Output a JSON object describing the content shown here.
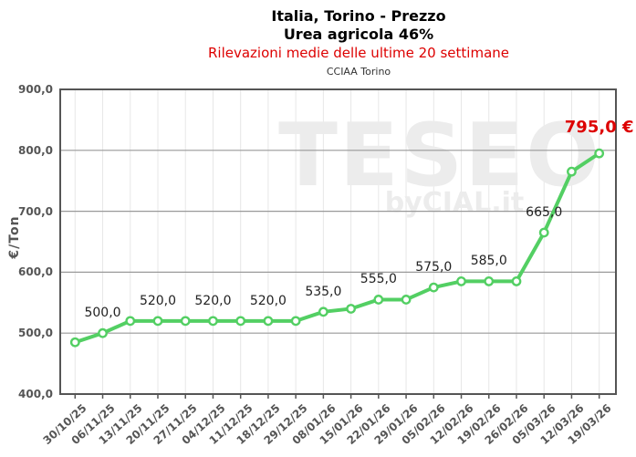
{
  "header": {
    "title_line1": "Italia, Torino - Prezzo",
    "title_line2": "Urea agricola 46%",
    "subtitle": "Rilevazioni medie delle ultime 20 settimane",
    "source": "CCIAA Torino"
  },
  "watermark": {
    "brand": "TESEO",
    "sub": "byCIAL.it"
  },
  "chart_data": {
    "type": "line",
    "title": "Italia, Torino - Prezzo Urea agricola 46%",
    "subtitle": "Rilevazioni medie delle ultime 20 settimane",
    "source": "CCIAA Torino",
    "xlabel": "",
    "ylabel": "€/Ton",
    "ylim": [
      400,
      900
    ],
    "grid": true,
    "legend": false,
    "yticks": [
      {
        "value": 900,
        "label": "900,0"
      },
      {
        "value": 800,
        "label": "800,0"
      },
      {
        "value": 700,
        "label": "700,0"
      },
      {
        "value": 600,
        "label": "600,0"
      },
      {
        "value": 500,
        "label": "500,0"
      },
      {
        "value": 400,
        "label": "400,0"
      }
    ],
    "categories": [
      "30/10/25",
      "06/11/25",
      "13/11/25",
      "20/11/25",
      "27/11/25",
      "04/12/25",
      "11/12/25",
      "18/12/25",
      "29/12/25",
      "08/01/26",
      "15/01/26",
      "22/01/26",
      "29/01/26",
      "05/02/26",
      "12/02/26",
      "19/02/26",
      "26/02/26",
      "05/03/26",
      "12/03/26",
      "19/03/26"
    ],
    "values": [
      485,
      500,
      520,
      520,
      520,
      520,
      520,
      520,
      520,
      535,
      540,
      555,
      555,
      575,
      585,
      585,
      585,
      665,
      765,
      795
    ],
    "point_labels": [
      "",
      "500,0",
      "",
      "520,0",
      "",
      "520,0",
      "",
      "520,0",
      "",
      "535,0",
      "",
      "555,0",
      "",
      "575,0",
      "",
      "585,0",
      "",
      "665,0",
      "",
      "795,0 €"
    ],
    "highlight_last": true,
    "colors": {
      "line": "#53cf63",
      "marker_fill": "#ffffff",
      "highlight_red": "#dd0000",
      "axis_text": "#555555",
      "label_text": "#222222",
      "grid_major": "#999999",
      "grid_minor": "#e7e7e7",
      "border": "#555555",
      "watermark": "#ececec"
    }
  }
}
